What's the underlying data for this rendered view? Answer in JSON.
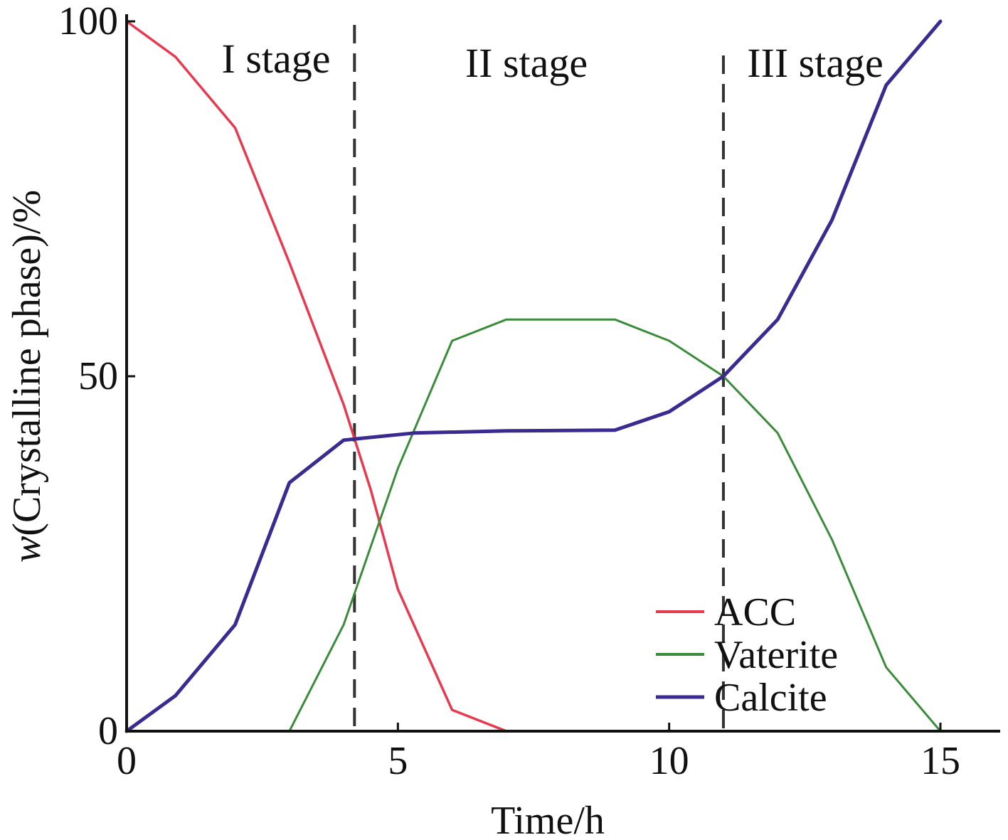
{
  "chart_data": {
    "type": "line",
    "xlabel": "Time/h",
    "ylabel_italic": "w",
    "ylabel_rest": "(Crystalline phase)/%",
    "xlim": [
      0,
      16
    ],
    "ylim": [
      0,
      100
    ],
    "xticks": [
      "0",
      "5",
      "10",
      "15"
    ],
    "xtick_values": [
      0,
      5,
      10,
      15
    ],
    "yticks": [
      "0",
      "50",
      "100"
    ],
    "ytick_values": [
      0,
      50,
      100
    ],
    "grid": false,
    "legend_position": "lower-right",
    "stages": [
      {
        "label": "I stage"
      },
      {
        "label": "II stage"
      },
      {
        "label": "III stage"
      }
    ],
    "stage_boundaries": [
      4.2,
      11.0
    ],
    "series": [
      {
        "name": "ACC",
        "color": "#e8394f",
        "x": [
          0,
          0.9,
          2.0,
          3.0,
          4.0,
          4.5,
          5.0,
          6.0,
          7.0
        ],
        "y": [
          100,
          95,
          85,
          66,
          46,
          34,
          20,
          3,
          0
        ]
      },
      {
        "name": "Vaterite",
        "color": "#3a8c3a",
        "x": [
          0,
          3.0,
          4.0,
          5.0,
          6.0,
          7.0,
          8.0,
          9.0,
          10.0,
          11.0,
          12.0,
          13.0,
          14.0,
          15.0
        ],
        "y": [
          0,
          0,
          15,
          37,
          55,
          58,
          58,
          58,
          55,
          50,
          42,
          27,
          9,
          0
        ]
      },
      {
        "name": "Calcite",
        "color": "#3b2a8f",
        "x": [
          0,
          0.9,
          2.0,
          3.0,
          4.0,
          5.3,
          7.0,
          9.0,
          10.0,
          11.0,
          12.0,
          13.0,
          14.0,
          15.0
        ],
        "y": [
          0,
          5,
          15,
          35,
          41,
          42,
          42.3,
          42.4,
          45,
          50,
          58,
          72,
          91,
          100
        ]
      }
    ]
  }
}
